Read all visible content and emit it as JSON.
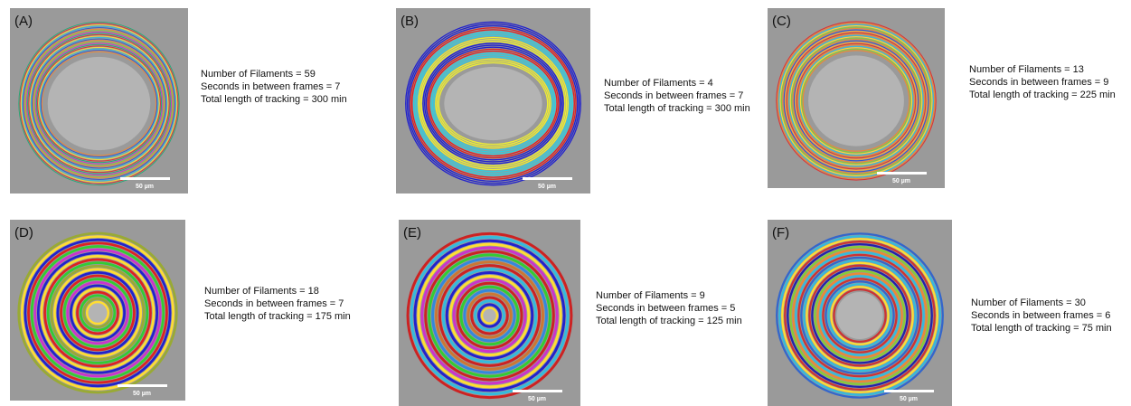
{
  "panels": [
    {
      "label": "(A)",
      "scale_bar": "50 µm",
      "lines": [
        "Number of Filaments = 59",
        "Seconds in between frames = 7",
        "Total length of tracking = 300 min"
      ]
    },
    {
      "label": "(B)",
      "scale_bar": "50 µm",
      "lines": [
        "Number of Filaments = 4",
        "Seconds in between frames = 7",
        "Total length of tracking = 300 min"
      ]
    },
    {
      "label": "(C)",
      "scale_bar": "50 µm",
      "lines": [
        "Number of Filaments = 13",
        "Seconds in between frames = 9",
        "Total length of tracking = 225 min"
      ]
    },
    {
      "label": "(D)",
      "scale_bar": "50 µm",
      "lines": [
        "Number of Filaments = 18",
        "Seconds in between frames = 7",
        "Total length of tracking = 175 min"
      ]
    },
    {
      "label": "(E)",
      "scale_bar": "50 µm",
      "lines": [
        "Number of Filaments = 9",
        "Seconds in between frames = 5",
        "Total length of tracking = 125 min"
      ]
    },
    {
      "label": "(F)",
      "scale_bar": "50 µm",
      "lines": [
        "Number of Filaments = 30",
        "Seconds in between frames = 6",
        "Total length of tracking = 75 min"
      ]
    }
  ]
}
